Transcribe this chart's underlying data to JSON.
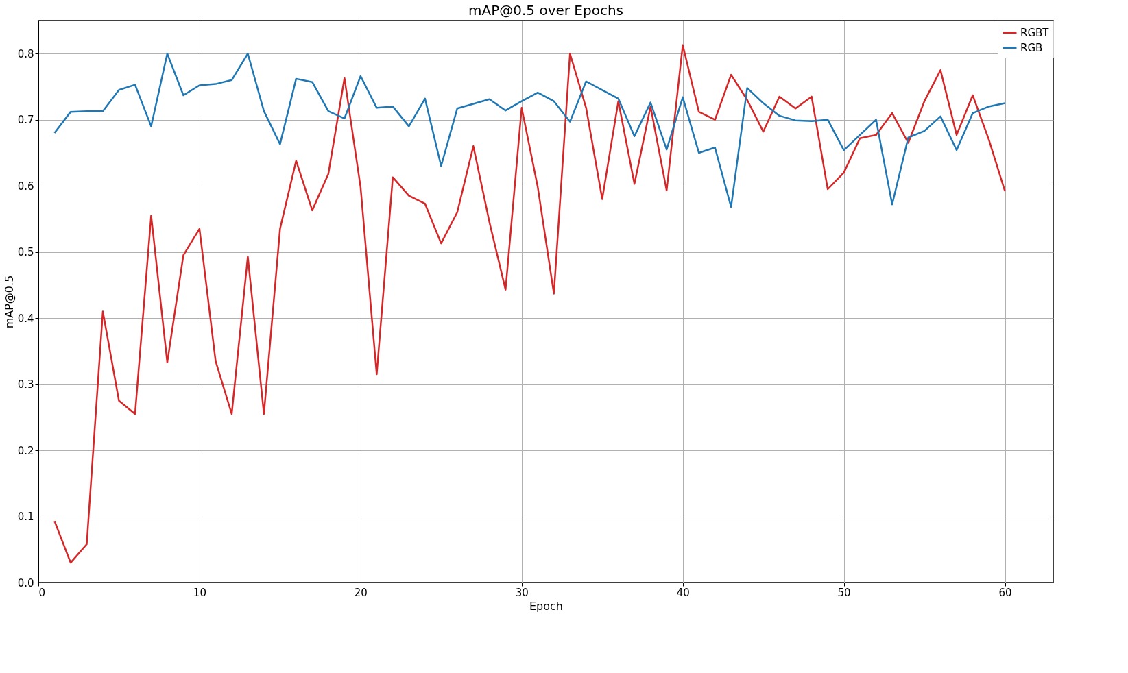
{
  "chart_data": {
    "type": "line",
    "title": "mAP@0.5 over Epochs",
    "xlabel": "Epoch",
    "ylabel": "mAP@0.5",
    "x": [
      1,
      2,
      3,
      4,
      5,
      6,
      7,
      8,
      9,
      10,
      11,
      12,
      13,
      14,
      15,
      16,
      17,
      18,
      19,
      20,
      21,
      22,
      23,
      24,
      25,
      26,
      27,
      28,
      29,
      30,
      31,
      32,
      33,
      34,
      35,
      36,
      37,
      38,
      39,
      40,
      41,
      42,
      43,
      44,
      45,
      46,
      47,
      48,
      49,
      50,
      51,
      52,
      53,
      54,
      55,
      56,
      57,
      58,
      59,
      60
    ],
    "series": [
      {
        "name": "RGBT",
        "color": "#d62728",
        "values": [
          0.093,
          0.03,
          0.058,
          0.41,
          0.275,
          0.255,
          0.555,
          0.333,
          0.495,
          0.535,
          0.335,
          0.255,
          0.493,
          0.255,
          0.535,
          0.638,
          0.563,
          0.618,
          0.763,
          0.598,
          0.315,
          0.613,
          0.585,
          0.573,
          0.513,
          0.56,
          0.66,
          0.545,
          0.443,
          0.718,
          0.598,
          0.437,
          0.8,
          0.718,
          0.58,
          0.728,
          0.603,
          0.72,
          0.593,
          0.813,
          0.712,
          0.7,
          0.768,
          0.73,
          0.682,
          0.735,
          0.717,
          0.735,
          0.595,
          0.62,
          0.672,
          0.677,
          0.71,
          0.665,
          0.728,
          0.775,
          0.677,
          0.737,
          0.67,
          0.592
        ]
      },
      {
        "name": "RGB",
        "color": "#1f77b4",
        "values": [
          0.68,
          0.712,
          0.713,
          0.713,
          0.745,
          0.753,
          0.69,
          0.8,
          0.737,
          0.752,
          0.754,
          0.76,
          0.8,
          0.713,
          0.663,
          0.762,
          0.757,
          0.713,
          0.702,
          0.766,
          0.718,
          0.72,
          0.69,
          0.732,
          0.63,
          0.717,
          0.724,
          0.731,
          0.714,
          0.728,
          0.741,
          0.728,
          0.697,
          0.758,
          0.745,
          0.732,
          0.675,
          0.726,
          0.655,
          0.734,
          0.65,
          0.658,
          0.568,
          0.748,
          0.725,
          0.706,
          0.699,
          0.698,
          0.7,
          0.654,
          0.677,
          0.7,
          0.572,
          0.673,
          0.683,
          0.705,
          0.654,
          0.71,
          0.72,
          0.725
        ]
      }
    ],
    "xlim": [
      0,
      63
    ],
    "xticks": [
      0,
      10,
      20,
      30,
      40,
      50,
      60
    ],
    "ylim": [
      0,
      0.85
    ],
    "yticks": [
      {
        "value": 0,
        "label": "0.0"
      },
      0.1,
      0.2,
      0.3,
      0.4,
      0.5,
      0.6,
      0.7,
      0.8
    ],
    "grid": true,
    "legend": "top right"
  }
}
